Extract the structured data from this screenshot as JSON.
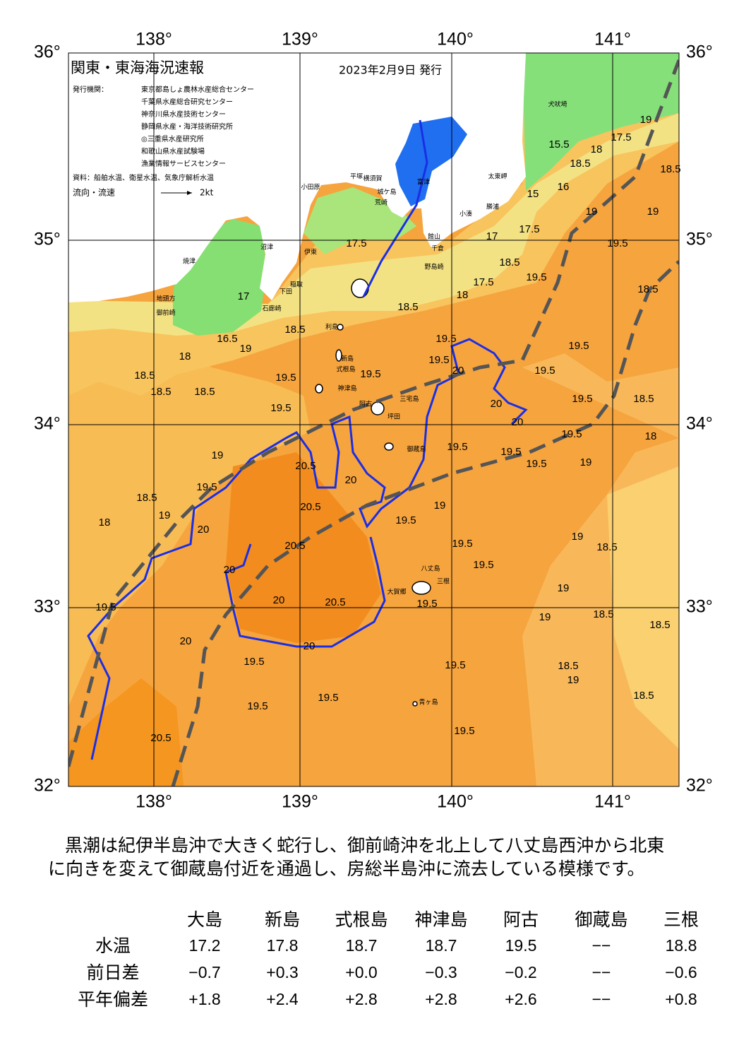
{
  "map": {
    "title": "関東・東海海況速報",
    "date": "2023年2月9日 発行",
    "issuer_label": "発行機関：",
    "issuers": [
      "東京都島しょ農林水産総合センター",
      "千葉県水産総合研究センター",
      "神奈川県水産技術センター",
      "静岡県水産・海洋技術研究所",
      "◎三重県水産研究所",
      "和歌山県水産試験場",
      "漁業情報サービスセンター"
    ],
    "source": "資料：船舶水温、衛星水温、気象庁解析水温",
    "legend": "流向・流速",
    "legend_scale": "2kt",
    "lon_labels": [
      "138°",
      "139°",
      "140°",
      "141°"
    ],
    "lat_labels": [
      "36°",
      "35°",
      "34°",
      "33°",
      "32°"
    ],
    "places": [
      "犬吠埼",
      "太東岬",
      "勝浦",
      "小湊",
      "館山",
      "千倉",
      "野島崎",
      "富津",
      "横須賀",
      "平塚",
      "城ケ島",
      "荒崎",
      "小田原",
      "沼津",
      "伊東",
      "稲取",
      "下田",
      "石廊崎",
      "焼津",
      "地頭方",
      "御前崎",
      "利島",
      "新島",
      "式根島",
      "神津島",
      "三宅島",
      "阿古",
      "坪田",
      "御蔵島",
      "八丈島",
      "三根",
      "大賀郷",
      "青ヶ島"
    ],
    "contour_labels": [
      "15.5",
      "18",
      "17.5",
      "19",
      "18.5",
      "18.5",
      "15",
      "16",
      "19",
      "19",
      "17",
      "17.5",
      "18.5",
      "19.5",
      "19.5",
      "18.5",
      "17.5",
      "18",
      "18.5",
      "17.5",
      "17",
      "18.5",
      "16.5",
      "19",
      "18",
      "18.5",
      "18.5",
      "18.5",
      "19.5",
      "19.5",
      "19.5",
      "19.5",
      "20",
      "19.5",
      "19.5",
      "19.5",
      "18.5",
      "19.5",
      "20",
      "20",
      "19.5",
      "18",
      "19",
      "19.5",
      "19.5",
      "19.5",
      "19",
      "20.5",
      "20",
      "18.5",
      "19.5",
      "20.5",
      "19",
      "19",
      "18",
      "19.5",
      "20",
      "20.5",
      "19.5",
      "19.5",
      "18.5",
      "19",
      "20",
      "19",
      "19.5",
      "20.5",
      "20",
      "19.5",
      "18.5",
      "19",
      "18.5",
      "20",
      "20",
      "19.5",
      "19.5",
      "18.5",
      "19",
      "18.5",
      "19.5",
      "19.5",
      "19.5",
      "20.5"
    ]
  },
  "summary": [
    "黒潮は紀伊半島沖で大きく蛇行し、御前崎沖を北上して八丈島西沖から北東",
    "に向きを変えて御蔵島付近を通過し、房総半島沖に流去している模様です。"
  ],
  "table": {
    "columns": [
      "大島",
      "新島",
      "式根島",
      "神津島",
      "阿古",
      "御蔵島",
      "三根"
    ],
    "rows": [
      {
        "label": "水温",
        "cells": [
          "17.2",
          "17.8",
          "18.7",
          "18.7",
          "19.5",
          "−−",
          "18.8"
        ]
      },
      {
        "label": "前日差",
        "cells": [
          "−0.7",
          "+0.3",
          "+0.0",
          "−0.3",
          "−0.2",
          "−−",
          "−0.6"
        ]
      },
      {
        "label": "平年偏差",
        "cells": [
          "+1.8",
          "+2.4",
          "+2.8",
          "+2.8",
          "+2.6",
          "−−",
          "+0.8"
        ]
      }
    ]
  }
}
